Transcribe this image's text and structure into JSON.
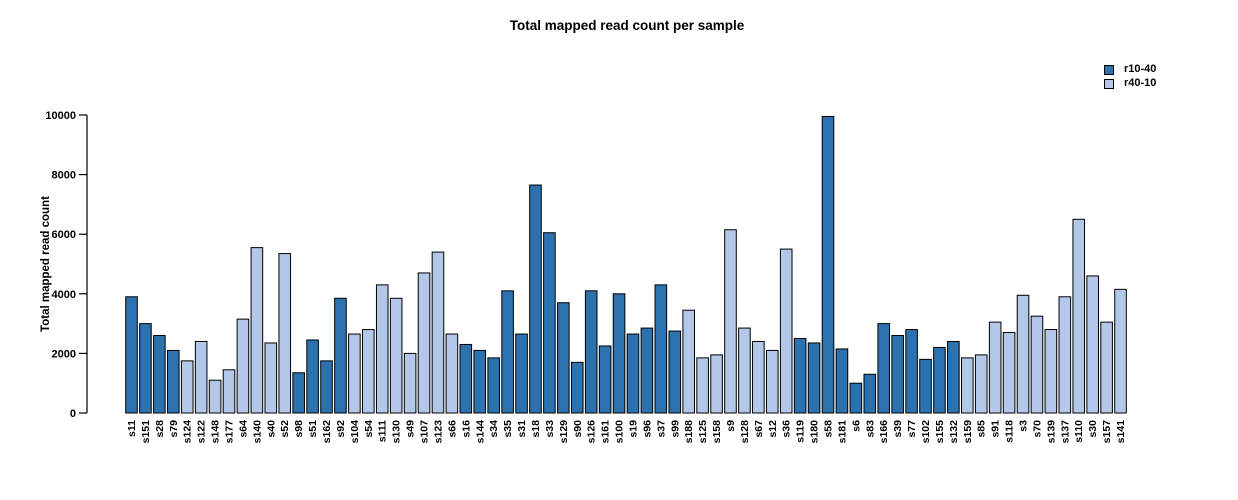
{
  "chart_data": {
    "type": "bar",
    "title": "Total mapped read count per sample",
    "ylabel": "Total mapped read count",
    "xlabel": "",
    "ylim": [
      0,
      10000
    ],
    "yticks": [
      0,
      2000,
      4000,
      6000,
      8000,
      10000
    ],
    "grid": false,
    "legend_position": "top-right",
    "series": [
      {
        "name": "r10-40",
        "color": "#2C72AE"
      },
      {
        "name": "r40-10",
        "color": "#B3C8E8"
      }
    ],
    "bar_border_color": "#000000",
    "samples": [
      {
        "label": "s11",
        "series": "r10-40",
        "value": 3900
      },
      {
        "label": "s151",
        "series": "r10-40",
        "value": 3000
      },
      {
        "label": "s28",
        "series": "r10-40",
        "value": 2600
      },
      {
        "label": "s79",
        "series": "r10-40",
        "value": 2100
      },
      {
        "label": "s124",
        "series": "r40-10",
        "value": 1750
      },
      {
        "label": "s122",
        "series": "r40-10",
        "value": 2400
      },
      {
        "label": "s148",
        "series": "r40-10",
        "value": 1100
      },
      {
        "label": "s177",
        "series": "r40-10",
        "value": 1450
      },
      {
        "label": "s64",
        "series": "r40-10",
        "value": 3150
      },
      {
        "label": "s140",
        "series": "r40-10",
        "value": 5550
      },
      {
        "label": "s40",
        "series": "r40-10",
        "value": 2350
      },
      {
        "label": "s52",
        "series": "r40-10",
        "value": 5350
      },
      {
        "label": "s98",
        "series": "r10-40",
        "value": 1350
      },
      {
        "label": "s51",
        "series": "r10-40",
        "value": 2450
      },
      {
        "label": "s162",
        "series": "r10-40",
        "value": 1750
      },
      {
        "label": "s92",
        "series": "r10-40",
        "value": 3850
      },
      {
        "label": "s104",
        "series": "r40-10",
        "value": 2650
      },
      {
        "label": "s54",
        "series": "r40-10",
        "value": 2800
      },
      {
        "label": "s111",
        "series": "r40-10",
        "value": 4300
      },
      {
        "label": "s130",
        "series": "r40-10",
        "value": 3850
      },
      {
        "label": "s49",
        "series": "r40-10",
        "value": 2000
      },
      {
        "label": "s107",
        "series": "r40-10",
        "value": 4700
      },
      {
        "label": "s123",
        "series": "r40-10",
        "value": 5400
      },
      {
        "label": "s66",
        "series": "r40-10",
        "value": 2650
      },
      {
        "label": "s16",
        "series": "r10-40",
        "value": 2300
      },
      {
        "label": "s144",
        "series": "r10-40",
        "value": 2100
      },
      {
        "label": "s34",
        "series": "r10-40",
        "value": 1850
      },
      {
        "label": "s35",
        "series": "r10-40",
        "value": 4100
      },
      {
        "label": "s31",
        "series": "r10-40",
        "value": 2650
      },
      {
        "label": "s18",
        "series": "r10-40",
        "value": 7650
      },
      {
        "label": "s33",
        "series": "r10-40",
        "value": 6050
      },
      {
        "label": "s129",
        "series": "r10-40",
        "value": 3700
      },
      {
        "label": "s90",
        "series": "r10-40",
        "value": 1700
      },
      {
        "label": "s126",
        "series": "r10-40",
        "value": 4100
      },
      {
        "label": "s161",
        "series": "r10-40",
        "value": 2250
      },
      {
        "label": "s100",
        "series": "r10-40",
        "value": 4000
      },
      {
        "label": "s19",
        "series": "r10-40",
        "value": 2650
      },
      {
        "label": "s96",
        "series": "r10-40",
        "value": 2850
      },
      {
        "label": "s37",
        "series": "r10-40",
        "value": 4300
      },
      {
        "label": "s99",
        "series": "r10-40",
        "value": 2750
      },
      {
        "label": "s188",
        "series": "r40-10",
        "value": 3450
      },
      {
        "label": "s125",
        "series": "r40-10",
        "value": 1850
      },
      {
        "label": "s158",
        "series": "r40-10",
        "value": 1950
      },
      {
        "label": "s9",
        "series": "r40-10",
        "value": 6150
      },
      {
        "label": "s128",
        "series": "r40-10",
        "value": 2850
      },
      {
        "label": "s67",
        "series": "r40-10",
        "value": 2400
      },
      {
        "label": "s12",
        "series": "r40-10",
        "value": 2100
      },
      {
        "label": "s36",
        "series": "r40-10",
        "value": 5500
      },
      {
        "label": "s119",
        "series": "r10-40",
        "value": 2500
      },
      {
        "label": "s180",
        "series": "r10-40",
        "value": 2350
      },
      {
        "label": "s58",
        "series": "r10-40",
        "value": 9950
      },
      {
        "label": "s181",
        "series": "r10-40",
        "value": 2150
      },
      {
        "label": "s6",
        "series": "r10-40",
        "value": 1000
      },
      {
        "label": "s83",
        "series": "r10-40",
        "value": 1300
      },
      {
        "label": "s166",
        "series": "r10-40",
        "value": 3000
      },
      {
        "label": "s39",
        "series": "r10-40",
        "value": 2600
      },
      {
        "label": "s77",
        "series": "r10-40",
        "value": 2800
      },
      {
        "label": "s102",
        "series": "r10-40",
        "value": 1800
      },
      {
        "label": "s155",
        "series": "r10-40",
        "value": 2200
      },
      {
        "label": "s132",
        "series": "r10-40",
        "value": 2400
      },
      {
        "label": "s159",
        "series": "r40-10",
        "value": 1850
      },
      {
        "label": "s85",
        "series": "r40-10",
        "value": 1950
      },
      {
        "label": "s91",
        "series": "r40-10",
        "value": 3050
      },
      {
        "label": "s118",
        "series": "r40-10",
        "value": 2700
      },
      {
        "label": "s3",
        "series": "r40-10",
        "value": 3950
      },
      {
        "label": "s70",
        "series": "r40-10",
        "value": 3250
      },
      {
        "label": "s139",
        "series": "r40-10",
        "value": 2800
      },
      {
        "label": "s137",
        "series": "r40-10",
        "value": 3900
      },
      {
        "label": "s110",
        "series": "r40-10",
        "value": 6500
      },
      {
        "label": "s30",
        "series": "r40-10",
        "value": 4600
      },
      {
        "label": "s157",
        "series": "r40-10",
        "value": 3050
      },
      {
        "label": "s141",
        "series": "r40-10",
        "value": 4150
      }
    ]
  }
}
